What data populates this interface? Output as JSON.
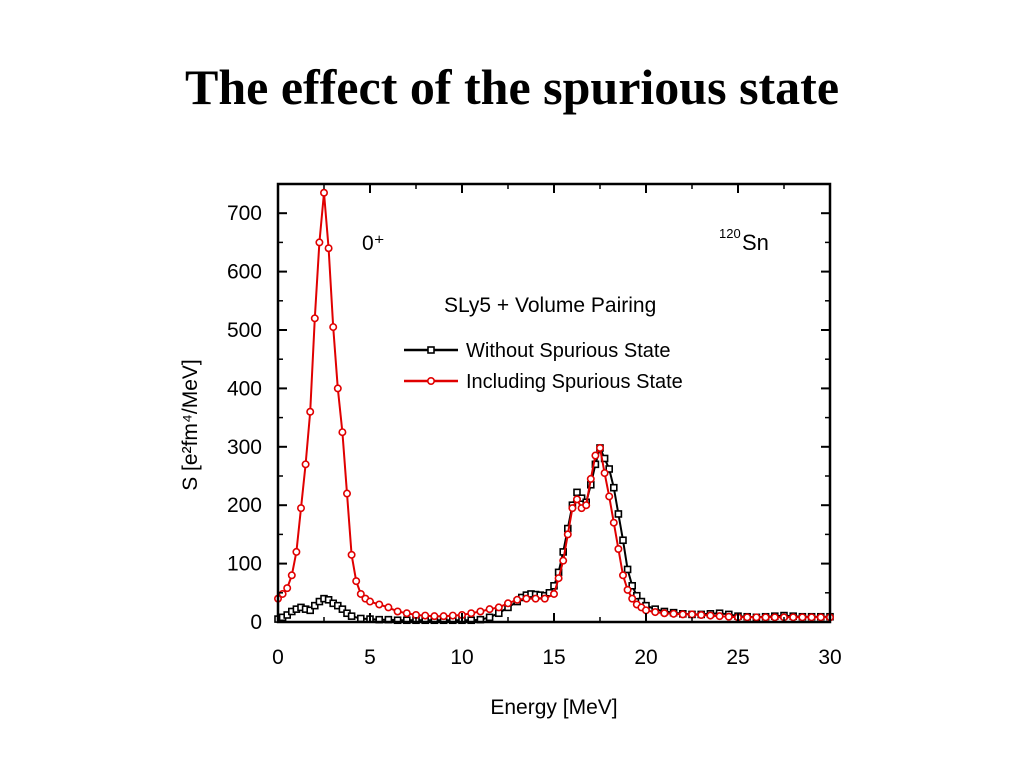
{
  "slide": {
    "title": "The effect of the spurious state"
  },
  "chart_data": {
    "type": "line",
    "xlabel": "Energy [MeV]",
    "ylabel": "S [e²fm⁴/MeV]",
    "xlim": [
      0,
      30
    ],
    "ylim": [
      0,
      750
    ],
    "xticks": [
      0,
      5,
      10,
      15,
      20,
      25,
      30
    ],
    "yticks": [
      0,
      100,
      200,
      300,
      400,
      500,
      600,
      700
    ],
    "grid": false,
    "annotations": {
      "multipolarity": "0⁺",
      "nucleus_mass": "120",
      "nucleus_symbol": "Sn",
      "legend_title": "SLy5 + Volume Pairing"
    },
    "legend_position": "upper-right",
    "series": [
      {
        "name": "Without Spurious State",
        "color": "#000000",
        "marker": "square",
        "x": [
          0,
          0.25,
          0.5,
          0.75,
          1,
          1.25,
          1.5,
          1.75,
          2,
          2.25,
          2.5,
          2.75,
          3,
          3.25,
          3.5,
          3.75,
          4,
          4.5,
          5,
          5.5,
          6,
          6.5,
          7,
          7.5,
          8,
          8.5,
          9,
          9.5,
          10,
          10.5,
          11,
          11.5,
          12,
          12.5,
          13,
          13.25,
          13.5,
          13.75,
          14,
          14.25,
          14.5,
          14.75,
          15,
          15.25,
          15.5,
          15.75,
          16,
          16.25,
          16.5,
          16.75,
          17,
          17.25,
          17.5,
          17.75,
          18,
          18.25,
          18.5,
          18.75,
          19,
          19.25,
          19.5,
          19.75,
          20,
          20.5,
          21,
          21.5,
          22,
          22.5,
          23,
          23.5,
          24,
          24.5,
          25,
          25.5,
          26,
          26.5,
          27,
          27.5,
          28,
          28.5,
          29,
          29.5,
          30
        ],
        "y": [
          5,
          8,
          12,
          18,
          22,
          25,
          22,
          20,
          28,
          35,
          40,
          38,
          32,
          28,
          22,
          15,
          10,
          6,
          5,
          4,
          4,
          3,
          3,
          3,
          3,
          3,
          3,
          3,
          3,
          3,
          4,
          8,
          15,
          25,
          35,
          42,
          46,
          48,
          47,
          46,
          45,
          50,
          62,
          85,
          120,
          160,
          200,
          222,
          212,
          205,
          235,
          270,
          298,
          280,
          262,
          230,
          185,
          140,
          90,
          62,
          45,
          35,
          28,
          22,
          18,
          16,
          14,
          13,
          13,
          14,
          15,
          13,
          10,
          9,
          8,
          9,
          10,
          11,
          10,
          9,
          9,
          9,
          9
        ]
      },
      {
        "name": "Including Spurious State",
        "color": "#e00000",
        "marker": "circle",
        "x": [
          0,
          0.25,
          0.5,
          0.75,
          1,
          1.25,
          1.5,
          1.75,
          2,
          2.25,
          2.5,
          2.75,
          3,
          3.25,
          3.5,
          3.75,
          4,
          4.25,
          4.5,
          4.75,
          5,
          5.5,
          6,
          6.5,
          7,
          7.5,
          8,
          8.5,
          9,
          9.5,
          10,
          10.5,
          11,
          11.5,
          12,
          12.5,
          13,
          13.5,
          14,
          14.5,
          15,
          15.25,
          15.5,
          15.75,
          16,
          16.25,
          16.5,
          16.75,
          17,
          17.25,
          17.5,
          17.75,
          18,
          18.25,
          18.5,
          18.75,
          19,
          19.25,
          19.5,
          19.75,
          20,
          20.5,
          21,
          21.5,
          22,
          22.5,
          23,
          23.5,
          24,
          24.5,
          25,
          25.5,
          26,
          26.5,
          27,
          27.5,
          28,
          28.5,
          29,
          29.5,
          30
        ],
        "y": [
          40,
          48,
          58,
          80,
          120,
          195,
          270,
          360,
          520,
          650,
          735,
          640,
          505,
          400,
          325,
          220,
          115,
          70,
          48,
          40,
          35,
          30,
          25,
          18,
          15,
          12,
          11,
          10,
          10,
          11,
          12,
          15,
          18,
          22,
          25,
          32,
          38,
          40,
          40,
          40,
          48,
          75,
          105,
          150,
          195,
          210,
          195,
          200,
          245,
          285,
          298,
          255,
          215,
          170,
          125,
          80,
          55,
          40,
          30,
          25,
          20,
          17,
          15,
          14,
          13,
          13,
          12,
          11,
          10,
          9,
          8,
          8,
          8,
          8,
          8,
          8,
          8,
          8,
          8,
          8,
          8
        ]
      }
    ]
  }
}
